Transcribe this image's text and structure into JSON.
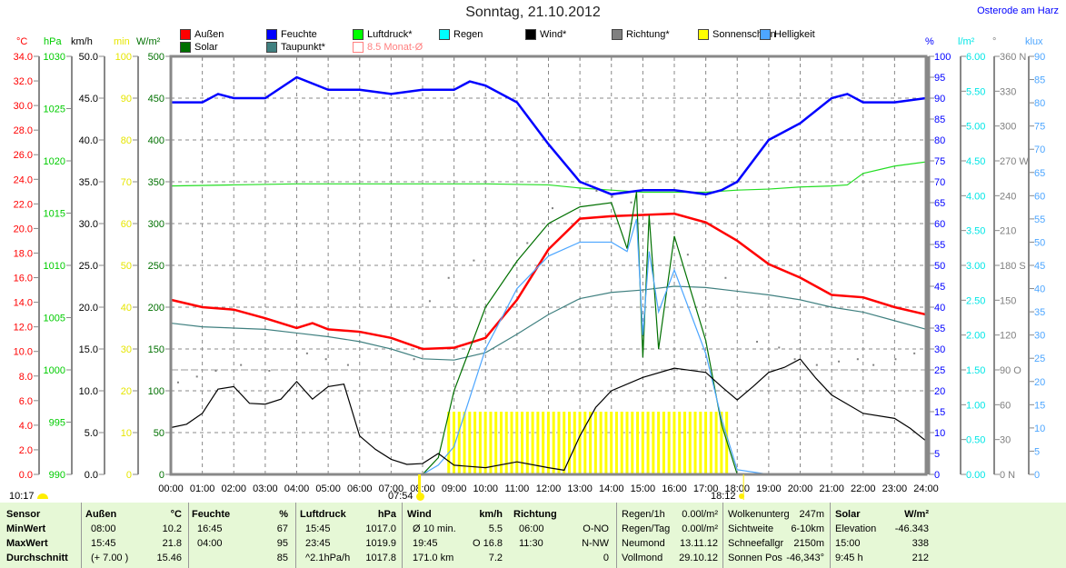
{
  "header": {
    "title": "Sonntag, 21.10.2012",
    "location": "Osterode am Harz"
  },
  "legend": [
    {
      "label": "Außen",
      "color": "#ff0000"
    },
    {
      "label": "Feuchte",
      "color": "#0000ff"
    },
    {
      "label": "Luftdruck*",
      "color": "#00ff00"
    },
    {
      "label": "Regen",
      "color": "#00ffff"
    },
    {
      "label": "Wind*",
      "color": "#000000"
    },
    {
      "label": "Richtung*",
      "color": "#808080"
    },
    {
      "label": "Sonnenschein",
      "color": "#ffff00"
    },
    {
      "label": "Helligkeit",
      "color": "#4da6ff"
    },
    {
      "label": "Solar",
      "color": "#007000"
    },
    {
      "label": "Taupunkt*",
      "color": "#408080"
    },
    {
      "label": "8.5 Monat-Ø",
      "color": "#ff8080"
    }
  ],
  "markers": {
    "cloud_time": "10:17",
    "sunrise": "07:54",
    "sunset": "18:12"
  },
  "chart_data": {
    "type": "line",
    "title": "Sonntag, 21.10.2012",
    "x_ticks": [
      "00:00",
      "01:00",
      "02:00",
      "03:00",
      "04:00",
      "05:00",
      "06:00",
      "07:00",
      "08:00",
      "09:00",
      "10:00",
      "11:00",
      "12:00",
      "13:00",
      "14:00",
      "15:00",
      "16:00",
      "17:00",
      "18:00",
      "19:00",
      "20:00",
      "21:00",
      "22:00",
      "23:00",
      "24:00"
    ],
    "xlim": [
      0,
      24
    ],
    "axes": [
      {
        "id": "temp",
        "unit": "°C",
        "min": 0,
        "max": 34,
        "step": 2,
        "dec": 1,
        "color": "#ff0000",
        "side": "left"
      },
      {
        "id": "press",
        "unit": "hPa",
        "min": 990,
        "max": 1030,
        "step": 5,
        "dec": 0,
        "color": "#00cc00",
        "side": "left"
      },
      {
        "id": "wind",
        "unit": "km/h",
        "min": 0,
        "max": 50,
        "step": 5,
        "dec": 1,
        "color": "#000000",
        "side": "left"
      },
      {
        "id": "sun",
        "unit": "min",
        "min": 0,
        "max": 100,
        "step": 10,
        "dec": 0,
        "color": "#e6e600",
        "side": "left"
      },
      {
        "id": "solar",
        "unit": "W/m²",
        "min": 0,
        "max": 500,
        "step": 50,
        "dec": 0,
        "color": "#007000",
        "side": "left"
      },
      {
        "id": "hum",
        "unit": "%",
        "min": 0,
        "max": 100,
        "step": 5,
        "dec": 0,
        "color": "#0000ff",
        "side": "right"
      },
      {
        "id": "rain",
        "unit": "l/m²",
        "min": 0,
        "max": 6,
        "step": 0.5,
        "dec": 2,
        "color": "#00e6e6",
        "side": "right"
      },
      {
        "id": "dir",
        "unit": "°",
        "min": 0,
        "max": 360,
        "step": 30,
        "dec": 0,
        "color": "#808080",
        "side": "right",
        "compass": {
          "0": "N",
          "90": "O",
          "180": "S",
          "270": "W",
          "360": "N"
        }
      },
      {
        "id": "lux",
        "unit": "klux",
        "min": 0,
        "max": 90,
        "step": 5,
        "dec": 0,
        "color": "#4da6ff",
        "side": "right"
      }
    ],
    "reference_line": {
      "name": "8.5 Monat-Ø",
      "axis": "temp",
      "value": 8.5
    },
    "series": [
      {
        "name": "Luftdruck",
        "axis": "press",
        "color": "#22dd22",
        "x": [
          0,
          2,
          4,
          6,
          8,
          10,
          12,
          13,
          14,
          15,
          16,
          17,
          18,
          19,
          20,
          21,
          21.5,
          22,
          23,
          24
        ],
        "y": [
          1017.6,
          1017.7,
          1017.8,
          1017.8,
          1017.8,
          1017.8,
          1017.7,
          1017.4,
          1017.2,
          1017.0,
          1017.0,
          1017.0,
          1017.2,
          1017.3,
          1017.5,
          1017.6,
          1017.7,
          1018.8,
          1019.5,
          1019.9
        ]
      },
      {
        "name": "Taupunkt",
        "axis": "temp",
        "color": "#408080",
        "x": [
          0,
          1,
          2,
          3,
          4,
          5,
          6,
          7,
          8,
          9,
          10,
          11,
          12,
          13,
          14,
          15,
          16,
          17,
          18,
          19,
          20,
          21,
          22,
          23,
          24
        ],
        "y": [
          12.3,
          12.0,
          11.9,
          11.8,
          11.5,
          11.2,
          10.8,
          10.2,
          9.4,
          9.3,
          9.9,
          11.4,
          13.0,
          14.3,
          14.8,
          15.0,
          15.3,
          15.2,
          14.9,
          14.6,
          14.2,
          13.6,
          13.2,
          12.5,
          11.8
        ]
      },
      {
        "name": "Außen",
        "axis": "temp",
        "color": "#ff0000",
        "x": [
          0,
          1,
          2,
          3,
          4,
          4.5,
          5,
          6,
          7,
          8,
          9,
          10,
          11,
          12,
          13,
          14,
          15,
          16,
          17,
          18,
          19,
          20,
          21,
          22,
          23,
          24
        ],
        "y": [
          14.2,
          13.6,
          13.4,
          12.7,
          11.9,
          12.3,
          11.8,
          11.6,
          11.1,
          10.2,
          10.3,
          11.1,
          14.2,
          18.3,
          20.8,
          21.0,
          21.1,
          21.2,
          20.5,
          19.0,
          17.1,
          16.0,
          14.6,
          14.4,
          13.6,
          13.0
        ]
      },
      {
        "name": "Feuchte",
        "axis": "hum",
        "color": "#0000ff",
        "x": [
          0,
          1,
          1.5,
          2,
          3,
          4,
          5,
          6,
          7,
          8,
          9,
          9.5,
          10,
          11,
          12,
          13,
          14,
          15,
          16,
          17,
          17.5,
          18,
          19,
          20,
          21,
          21.5,
          22,
          23,
          24
        ],
        "y": [
          89,
          89,
          91,
          90,
          90,
          95,
          92,
          92,
          91,
          92,
          92,
          94,
          93,
          89,
          79,
          70,
          67,
          68,
          68,
          67,
          68,
          70,
          80,
          84,
          90,
          91,
          89,
          89,
          90
        ]
      },
      {
        "name": "Solar",
        "axis": "solar",
        "color": "#007000",
        "x": [
          0,
          8,
          8.5,
          9,
          10,
          11,
          12,
          13,
          14,
          14.5,
          14.8,
          15.0,
          15.2,
          15.5,
          16,
          17,
          17.5,
          18,
          24
        ],
        "y": [
          0,
          0,
          20,
          100,
          200,
          255,
          300,
          320,
          325,
          270,
          338,
          140,
          310,
          150,
          285,
          160,
          60,
          0,
          0
        ]
      },
      {
        "name": "Helligkeit",
        "axis": "lux",
        "color": "#4da6ff",
        "x": [
          0,
          8,
          8.5,
          9,
          10,
          11,
          12,
          13,
          14,
          14.5,
          14.8,
          15.0,
          15.2,
          15.5,
          16,
          17,
          17.5,
          18,
          19,
          24
        ],
        "y": [
          0,
          0,
          2,
          6,
          27,
          40,
          47,
          50,
          50,
          48,
          55,
          30,
          48,
          35,
          44,
          26,
          12,
          1,
          0,
          0
        ]
      },
      {
        "name": "Wind",
        "axis": "wind",
        "color": "#000000",
        "x": [
          0,
          0.5,
          1,
          1.5,
          2,
          2.5,
          3,
          3.5,
          4,
          4.5,
          5,
          5.5,
          6,
          6.5,
          7,
          7.5,
          8,
          8.5,
          9,
          10,
          11,
          12,
          12.5,
          13,
          13.5,
          14,
          15,
          16,
          17,
          17.5,
          18,
          18.5,
          19,
          19.5,
          20,
          20.5,
          21,
          22,
          23,
          23.5,
          24
        ],
        "y": [
          5.6,
          6.0,
          7.3,
          10.2,
          10.5,
          8.5,
          8.4,
          9.0,
          11.1,
          9.0,
          10.5,
          10.8,
          4.6,
          3.0,
          1.8,
          1.2,
          1.3,
          2.5,
          1.1,
          0.8,
          1.5,
          0.8,
          0.5,
          4.6,
          8.0,
          10.0,
          11.6,
          12.7,
          12.2,
          10.5,
          8.9,
          10.5,
          12.2,
          12.8,
          13.8,
          11.5,
          9.5,
          7.3,
          6.7,
          5.5,
          4.0
        ]
      }
    ],
    "richtung": {
      "x": [
        0.2,
        0.8,
        1.4,
        2.2,
        3.1,
        4.3,
        4.9,
        5.6,
        7.7,
        8.2,
        8.8,
        9.6,
        11.3,
        12.1,
        13.5,
        14.0,
        14.6,
        16.4,
        17.6,
        18.6,
        19.3,
        19.8,
        20.5,
        21.2,
        21.8,
        22.3,
        23.0,
        23.6
      ],
      "y": [
        80,
        85,
        90,
        95,
        90,
        105,
        100,
        95,
        100,
        150,
        170,
        185,
        200,
        230,
        245,
        240,
        235,
        190,
        170,
        115,
        110,
        100,
        95,
        98,
        100,
        95,
        100,
        105
      ]
    },
    "sonnenschein": {
      "axis": "sun",
      "start": 8.83,
      "end": 17.83,
      "interval_h": 0.1667,
      "value": 15
    }
  },
  "table": {
    "headers": [
      {
        "l": "Sensor"
      },
      {
        "l": "Außen",
        "u": "°C"
      },
      {
        "l": "Feuchte",
        "u": "%"
      },
      {
        "l": "Luftdruck",
        "u": "hPa"
      },
      {
        "l": "Wind",
        "u": "km/h"
      },
      {
        "l": "Richtung"
      }
    ],
    "row_labels": [
      "MinWert",
      "MaxWert",
      "Durchschnitt"
    ],
    "aussen": [
      [
        "08:00",
        "10.2"
      ],
      [
        "15:45",
        "21.8"
      ],
      [
        "(+ 7.00 )",
        "15.46"
      ]
    ],
    "feuchte": [
      [
        "16:45",
        "67"
      ],
      [
        "04:00",
        "95"
      ],
      [
        "",
        "85"
      ]
    ],
    "luftdruck": [
      [
        "15:45",
        "1017.0"
      ],
      [
        "23:45",
        "1019.9"
      ],
      [
        "^2.1hPa/h",
        "1017.8"
      ]
    ],
    "wind": [
      [
        "Ø 10 min.",
        "5.5"
      ],
      [
        "19:45",
        "O 16.8"
      ],
      [
        "171.0 km",
        "7.2"
      ]
    ],
    "richtung": [
      [
        "06:00",
        "O-NO"
      ],
      [
        "11:30",
        "N-NW"
      ],
      [
        "",
        "0"
      ]
    ],
    "regen": [
      [
        "Regen/1h",
        "0.00l/m²"
      ],
      [
        "Regen/Tag",
        "0.00l/m²"
      ],
      [
        "Neumond",
        "13.11.12"
      ],
      [
        "Vollmond",
        "29.10.12"
      ]
    ],
    "wolken": [
      [
        "Wolkenunterg",
        "247m"
      ],
      [
        "Sichtweite",
        "6-10km"
      ],
      [
        "Schneefallgr",
        "2150m"
      ],
      [
        "Sonnen Pos",
        "-46,343°"
      ]
    ],
    "solar": [
      [
        "Solar",
        "W/m²"
      ],
      [
        "Elevation",
        "-46.343"
      ],
      [
        "15:00",
        "338"
      ],
      [
        "9:45 h",
        "212"
      ]
    ]
  }
}
